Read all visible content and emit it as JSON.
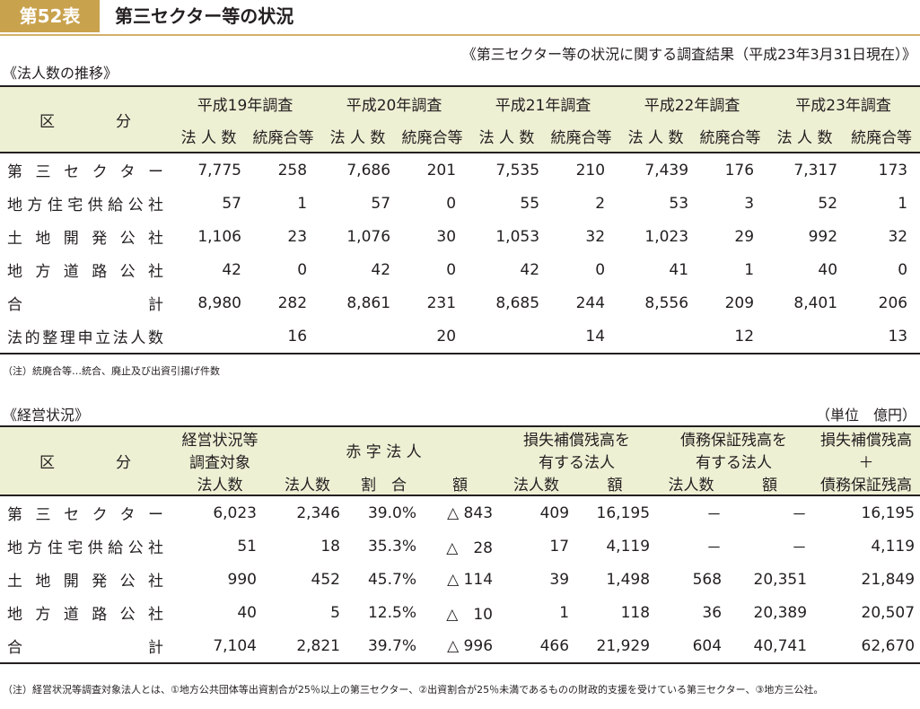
{
  "header": {
    "tag": "第52表",
    "title": "第三セクター等の状況"
  },
  "source": "《第三セクター等の状況に関する調査結果（平成23年3月31日現在）》",
  "sec1_title": "《法人数の推移》",
  "t1": {
    "kubun": "区　　　　分",
    "years": [
      "平成19年調査",
      "平成20年調査",
      "平成21年調査",
      "平成22年調査",
      "平成23年調査"
    ],
    "sub": [
      "法 人 数",
      "統廃合等"
    ],
    "rows": [
      {
        "label": "第三セクター",
        "vals": [
          "7,775",
          "258",
          "7,686",
          "201",
          "7,535",
          "210",
          "7,439",
          "176",
          "7,317",
          "173"
        ]
      },
      {
        "label": "地方住宅供給公社",
        "vals": [
          "57",
          "1",
          "57",
          "0",
          "55",
          "2",
          "53",
          "3",
          "52",
          "1"
        ]
      },
      {
        "label": "土地開発公社",
        "vals": [
          "1,106",
          "23",
          "1,076",
          "30",
          "1,053",
          "32",
          "1,023",
          "29",
          "992",
          "32"
        ]
      },
      {
        "label": "地方道路公社",
        "vals": [
          "42",
          "0",
          "42",
          "0",
          "42",
          "0",
          "41",
          "1",
          "40",
          "0"
        ]
      },
      {
        "label": "合計",
        "vals": [
          "8,980",
          "282",
          "8,861",
          "231",
          "8,685",
          "244",
          "8,556",
          "209",
          "8,401",
          "206"
        ]
      },
      {
        "label": "法的整理申立法人数",
        "vals": [
          "",
          "16",
          "",
          "20",
          "",
          "14",
          "",
          "12",
          "",
          "13"
        ]
      }
    ]
  },
  "note1": "（注）統廃合等…統合、廃止及び出資引揚げ件数",
  "sec2_title": "《経営状況》",
  "unit": "（単位　億円）",
  "t2": {
    "kubun": "区　　　　分",
    "h_taisho": [
      "経営状況等",
      "調査対象",
      "法人数"
    ],
    "h_akaji": "赤 字 法 人",
    "h_sonshitsu": [
      "損失補償残高を",
      "有する法人"
    ],
    "h_saimu": [
      "債務保証残高を",
      "有する法人"
    ],
    "h_total": [
      "損失補償残高",
      "＋",
      "債務保証残高"
    ],
    "sub": {
      "count": "法人数",
      "ratio": "割　合",
      "amount": "額"
    },
    "rows": [
      {
        "label": "第三セクター",
        "taisho": "6,023",
        "ak_n": "2,346",
        "ak_r": "39.0%",
        "ak_a": "△ 843",
        "so_n": "409",
        "so_a": "16,195",
        "sa_n": "－",
        "sa_a": "－",
        "total": "16,195"
      },
      {
        "label": "地方住宅供給公社",
        "taisho": "51",
        "ak_n": "18",
        "ak_r": "35.3%",
        "ak_a": "△　28",
        "so_n": "17",
        "so_a": "4,119",
        "sa_n": "－",
        "sa_a": "－",
        "total": "4,119"
      },
      {
        "label": "土地開発公社",
        "taisho": "990",
        "ak_n": "452",
        "ak_r": "45.7%",
        "ak_a": "△ 114",
        "so_n": "39",
        "so_a": "1,498",
        "sa_n": "568",
        "sa_a": "20,351",
        "total": "21,849"
      },
      {
        "label": "地方道路公社",
        "taisho": "40",
        "ak_n": "5",
        "ak_r": "12.5%",
        "ak_a": "△　10",
        "so_n": "1",
        "so_a": "118",
        "sa_n": "36",
        "sa_a": "20,389",
        "total": "20,507"
      },
      {
        "label": "合計",
        "taisho": "7,104",
        "ak_n": "2,821",
        "ak_r": "39.7%",
        "ak_a": "△ 996",
        "so_n": "466",
        "so_a": "21,929",
        "sa_n": "604",
        "sa_a": "40,741",
        "total": "62,670"
      }
    ]
  },
  "note2": "（注）経営状況等調査対象法人とは、①地方公共団体等出資割合が25％以上の第三セクター、②出資割合が25％未満であるものの財政的支援を受けている第三セクター、③地方三公社。"
}
